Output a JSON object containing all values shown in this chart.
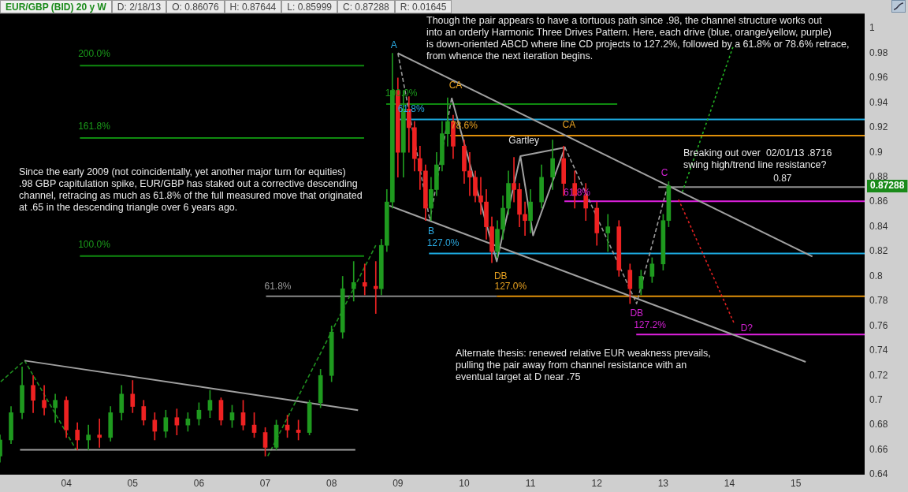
{
  "chart_data": {
    "type": "candlestick",
    "title": "EUR/GBP (BID) 20 y W",
    "x": [
      "2003-01",
      "2003-03",
      "2003-05",
      "2003-07",
      "2003-09",
      "2003-11",
      "2004-01",
      "2004-03",
      "2004-05",
      "2004-07",
      "2004-09",
      "2004-11",
      "2005-01",
      "2005-03",
      "2005-05",
      "2005-07",
      "2005-09",
      "2005-11",
      "2006-01",
      "2006-03",
      "2006-05",
      "2006-07",
      "2006-09",
      "2006-11",
      "2007-01",
      "2007-03",
      "2007-05",
      "2007-07",
      "2007-09",
      "2007-11",
      "2008-01",
      "2008-03",
      "2008-05",
      "2008-07",
      "2008-09",
      "2008-10",
      "2008-11",
      "2008-12",
      "2009-01",
      "2009-02",
      "2009-03",
      "2009-04",
      "2009-05",
      "2009-06",
      "2009-07",
      "2009-08",
      "2009-09",
      "2009-10",
      "2009-11",
      "2010-01",
      "2010-02",
      "2010-03",
      "2010-04",
      "2010-05",
      "2010-06",
      "2010-07",
      "2010-08",
      "2010-09",
      "2010-10",
      "2010-11",
      "2010-12",
      "2011-01",
      "2011-03",
      "2011-05",
      "2011-07",
      "2011-09",
      "2011-11",
      "2012-01",
      "2012-03",
      "2012-05",
      "2012-07",
      "2012-09",
      "2012-11",
      "2013-01",
      "2013-02"
    ],
    "ohlc": [
      [
        0.655,
        0.672,
        0.65,
        0.668
      ],
      [
        0.668,
        0.695,
        0.665,
        0.69
      ],
      [
        0.69,
        0.727,
        0.685,
        0.712
      ],
      [
        0.712,
        0.72,
        0.69,
        0.7
      ],
      [
        0.7,
        0.712,
        0.688,
        0.694
      ],
      [
        0.694,
        0.705,
        0.682,
        0.7
      ],
      [
        0.7,
        0.703,
        0.67,
        0.676
      ],
      [
        0.676,
        0.682,
        0.66,
        0.668
      ],
      [
        0.668,
        0.68,
        0.66,
        0.672
      ],
      [
        0.672,
        0.685,
        0.662,
        0.67
      ],
      [
        0.67,
        0.695,
        0.667,
        0.69
      ],
      [
        0.69,
        0.712,
        0.684,
        0.705
      ],
      [
        0.705,
        0.716,
        0.69,
        0.695
      ],
      [
        0.695,
        0.7,
        0.68,
        0.684
      ],
      [
        0.684,
        0.69,
        0.668,
        0.675
      ],
      [
        0.675,
        0.692,
        0.67,
        0.686
      ],
      [
        0.686,
        0.693,
        0.672,
        0.68
      ],
      [
        0.68,
        0.69,
        0.675,
        0.685
      ],
      [
        0.685,
        0.698,
        0.68,
        0.692
      ],
      [
        0.692,
        0.708,
        0.686,
        0.7
      ],
      [
        0.7,
        0.702,
        0.68,
        0.684
      ],
      [
        0.684,
        0.696,
        0.678,
        0.69
      ],
      [
        0.69,
        0.7,
        0.676,
        0.68
      ],
      [
        0.68,
        0.69,
        0.67,
        0.674
      ],
      [
        0.674,
        0.678,
        0.655,
        0.662
      ],
      [
        0.662,
        0.684,
        0.66,
        0.68
      ],
      [
        0.68,
        0.688,
        0.67,
        0.676
      ],
      [
        0.676,
        0.684,
        0.668,
        0.674
      ],
      [
        0.674,
        0.7,
        0.672,
        0.698
      ],
      [
        0.698,
        0.725,
        0.694,
        0.72
      ],
      [
        0.72,
        0.76,
        0.715,
        0.755
      ],
      [
        0.755,
        0.8,
        0.75,
        0.79
      ],
      [
        0.79,
        0.812,
        0.78,
        0.795
      ],
      [
        0.795,
        0.81,
        0.785,
        0.792
      ],
      [
        0.792,
        0.812,
        0.77,
        0.79
      ],
      [
        0.79,
        0.83,
        0.785,
        0.825
      ],
      [
        0.825,
        0.87,
        0.82,
        0.86
      ],
      [
        0.86,
        0.98,
        0.855,
        0.95
      ],
      [
        0.95,
        0.96,
        0.88,
        0.9
      ],
      [
        0.9,
        0.95,
        0.88,
        0.935
      ],
      [
        0.935,
        0.945,
        0.9,
        0.92
      ],
      [
        0.92,
        0.925,
        0.885,
        0.895
      ],
      [
        0.895,
        0.905,
        0.87,
        0.885
      ],
      [
        0.885,
        0.89,
        0.845,
        0.855
      ],
      [
        0.855,
        0.88,
        0.845,
        0.87
      ],
      [
        0.87,
        0.9,
        0.865,
        0.89
      ],
      [
        0.89,
        0.925,
        0.885,
        0.915
      ],
      [
        0.915,
        0.944,
        0.905,
        0.925
      ],
      [
        0.925,
        0.93,
        0.895,
        0.905
      ],
      [
        0.905,
        0.91,
        0.875,
        0.885
      ],
      [
        0.885,
        0.9,
        0.865,
        0.88
      ],
      [
        0.88,
        0.885,
        0.86,
        0.865
      ],
      [
        0.865,
        0.88,
        0.85,
        0.86
      ],
      [
        0.86,
        0.87,
        0.83,
        0.84
      ],
      [
        0.84,
        0.848,
        0.811,
        0.82
      ],
      [
        0.82,
        0.845,
        0.815,
        0.838
      ],
      [
        0.838,
        0.865,
        0.83,
        0.855
      ],
      [
        0.855,
        0.885,
        0.85,
        0.875
      ],
      [
        0.875,
        0.896,
        0.86,
        0.87
      ],
      [
        0.87,
        0.875,
        0.84,
        0.85
      ],
      [
        0.85,
        0.86,
        0.833,
        0.845
      ],
      [
        0.845,
        0.87,
        0.835,
        0.86
      ],
      [
        0.86,
        0.89,
        0.855,
        0.88
      ],
      [
        0.88,
        0.91,
        0.87,
        0.895
      ],
      [
        0.895,
        0.905,
        0.865,
        0.875
      ],
      [
        0.875,
        0.885,
        0.855,
        0.865
      ],
      [
        0.865,
        0.875,
        0.845,
        0.855
      ],
      [
        0.855,
        0.86,
        0.825,
        0.835
      ],
      [
        0.835,
        0.85,
        0.82,
        0.84
      ],
      [
        0.84,
        0.845,
        0.8,
        0.805
      ],
      [
        0.805,
        0.81,
        0.778,
        0.79
      ],
      [
        0.79,
        0.805,
        0.785,
        0.8
      ],
      [
        0.8,
        0.815,
        0.795,
        0.81
      ],
      [
        0.81,
        0.85,
        0.805,
        0.845
      ],
      [
        0.845,
        0.8764,
        0.84,
        0.87288
      ]
    ],
    "series": [
      {
        "type": "line",
        "x": [
          "2009-01-01",
          "2015-04-01"
        ],
        "values": [
          0.98,
          0.816
        ],
        "color": "#a0a0a0",
        "line_style": "solid"
      },
      {
        "type": "line",
        "x": [
          "2008-11-15",
          "2015-02-25"
        ],
        "values": [
          0.857,
          0.731
        ],
        "color": "#a0a0a0",
        "line_style": "solid"
      },
      {
        "type": "line",
        "x": [
          "2003-05-15",
          "2008-05-25"
        ],
        "values": [
          0.732,
          0.692
        ],
        "color": "#a0a0a0",
        "line_style": "solid"
      },
      {
        "type": "line",
        "x": [
          "2003-04-20",
          "2008-05-10"
        ],
        "values": [
          0.66,
          0.66
        ],
        "color": "#a0a0a0",
        "line_style": "solid"
      },
      {
        "type": "line",
        "x": [
          "2009-10-23",
          "2010-06-28",
          "2010-11-06",
          "2011-01-15",
          "2011-07-08",
          "2010-11-06"
        ],
        "values": [
          0.944,
          0.812,
          0.897,
          0.833,
          0.904,
          0.897
        ],
        "color": "#a0a0a0",
        "line_style": "solid"
      },
      {
        "type": "line",
        "x": [
          "2009-01-01",
          "2009-06-25",
          "2009-10-23",
          "2010-01-01",
          "2011-07-08",
          "2012-08-07",
          "2013-01-20"
        ],
        "values": [
          0.98,
          0.845,
          0.944,
          null,
          0.904,
          0.778,
          0.87
        ],
        "color": "#9a9a9a",
        "line_style": "dashed"
      },
      {
        "type": "line",
        "x": [
          "2003-01-05",
          "2003-05-15",
          "2004-02-25",
          "2005-01-01",
          "2007-01-15",
          "2008-09-01"
        ],
        "values": [
          0.715,
          0.732,
          0.66,
          null,
          0.655,
          0.825
        ],
        "color": "#1f8f1f",
        "line_style": "dashed"
      },
      {
        "type": "line",
        "x": [
          "2013-04-15",
          "2014-01-20"
        ],
        "values": [
          0.868,
          0.985
        ],
        "color": "#22b022",
        "line_style": "dotted"
      },
      {
        "type": "line",
        "x": [
          "2013-03-25",
          "2014-01-30"
        ],
        "values": [
          0.862,
          0.761
        ],
        "color": "#e02020",
        "line_style": "dotted"
      },
      {
        "type": "line",
        "x": [
          "2004-03-15",
          "2008-06-28"
        ],
        "values": [
          0.97,
          0.97
        ],
        "color": "#0f8a0f",
        "line_style": "solid"
      },
      {
        "type": "line",
        "x": [
          "2004-03-15",
          "2008-06-28"
        ],
        "values": [
          0.9116,
          0.9116
        ],
        "color": "#0f8a0f",
        "line_style": "solid"
      },
      {
        "type": "line",
        "x": [
          "2004-03-15",
          "2008-06-28"
        ],
        "values": [
          0.8163,
          0.8163
        ],
        "color": "#0f8a0f",
        "line_style": "solid"
      },
      {
        "type": "line",
        "x": [
          "2008-10-28",
          "2012-04-22"
        ],
        "values": [
          0.939,
          0.939
        ],
        "color": "#0f8a0f",
        "line_style": "solid"
      },
      {
        "type": "line",
        "x": [
          "2007-01-05",
          "2010-06-28"
        ],
        "values": [
          0.784,
          0.784
        ],
        "color": "#888888",
        "line_style": "solid"
      },
      {
        "type": "line",
        "x": [
          "2009-01-05",
          "2016-01-15"
        ],
        "values": [
          0.9265,
          0.9265
        ],
        "color": "#1ca8dd",
        "line_style": "solid"
      },
      {
        "type": "line",
        "x": [
          "2009-10-16",
          "2016-01-15"
        ],
        "values": [
          0.9135,
          0.9135
        ],
        "color": "#e0900a",
        "line_style": "solid"
      },
      {
        "type": "line",
        "x": [
          "2009-06-20",
          "2016-01-15"
        ],
        "values": [
          0.8184,
          0.8184
        ],
        "color": "#1ca8dd",
        "line_style": "solid"
      },
      {
        "type": "line",
        "x": [
          "2010-06-28",
          "2016-01-15"
        ],
        "values": [
          0.784,
          0.784
        ],
        "color": "#e0900a",
        "line_style": "solid"
      },
      {
        "type": "line",
        "x": [
          "2011-07-05",
          "2016-01-15"
        ],
        "values": [
          0.8605,
          0.8605
        ],
        "color": "#e020e0",
        "line_style": "solid"
      },
      {
        "type": "line",
        "x": [
          "2012-08-05",
          "2016-01-15"
        ],
        "values": [
          0.753,
          0.753
        ],
        "color": "#e020e0",
        "line_style": "solid"
      },
      {
        "type": "line",
        "x": [
          "2012-12-05",
          "2016-01-15"
        ],
        "values": [
          0.872,
          0.872
        ],
        "color": "#909090",
        "line_style": "solid"
      }
    ],
    "annotations": [
      "D: 2/18/13",
      "O: 0.86076",
      "H: 0.87644",
      "L: 0.85999",
      "C: 0.87288",
      "R: 0.01645",
      "Since the early 2009 (not coincidentally, yet another major turn for equities)\n.98 GBP capitulation spike, EUR/GBP has staked out a corrective descending\nchannel, retracing as much as 61.8% of the full measured move that originated\nat .65 in the descending triangle over 6 years ago.",
      "Though the pair appears to have a tortuous path since .98, the channel structure works out\ninto an orderly Harmonic Three Drives Pattern. Here, each drive (blue, orange/yellow, purple)\nis down-oriented ABCD where line CD projects to 127.2%, followed by a 61.8% or 78.6% retrace,\nfrom whence the next iteration begins.",
      "Breaking out over  02/01/13 .8716\nswing high/trend line resistance?",
      "Alternate thesis: renewed relative EUR weakness prevails,\npulling the pair away from channel resistance with an\neventual target at D near .75",
      "A",
      "B",
      "CA",
      "DB",
      "Gartley",
      "CA",
      "DB",
      "C",
      "D?",
      "0.87",
      "200.0%",
      "161.8%",
      "100.0%",
      "100.0%",
      "61.8%",
      "78.6%",
      "127.0%",
      "127.0%",
      "61.8%",
      "127.2%",
      "61.8%",
      "0.87288"
    ],
    "xlim": [
      "2003-01-01",
      "2016-01-15"
    ],
    "xticks": [
      {
        "value": "2004-01-01",
        "label": "04"
      },
      {
        "value": "2005-01-01",
        "label": "05"
      },
      {
        "value": "2006-01-01",
        "label": "06"
      },
      {
        "value": "2007-01-01",
        "label": "07"
      },
      {
        "value": "2008-01-01",
        "label": "08"
      },
      {
        "value": "2009-01-01",
        "label": "09"
      },
      {
        "value": "2010-01-01",
        "label": "10"
      },
      {
        "value": "2011-01-01",
        "label": "11"
      },
      {
        "value": "2012-01-01",
        "label": "12"
      },
      {
        "value": "2013-01-01",
        "label": "13"
      },
      {
        "value": "2014-01-01",
        "label": "14"
      },
      {
        "value": "2015-01-01",
        "label": "15"
      }
    ],
    "ylim": [
      0.64,
      1.012
    ],
    "yticks": [
      0.64,
      0.66,
      0.68,
      0.7,
      0.72,
      0.74,
      0.76,
      0.78,
      0.8,
      0.82,
      0.84,
      0.86,
      0.88,
      0.9,
      0.92,
      0.94,
      0.96,
      0.98,
      1
    ],
    "grid": false,
    "legend": false
  }
}
